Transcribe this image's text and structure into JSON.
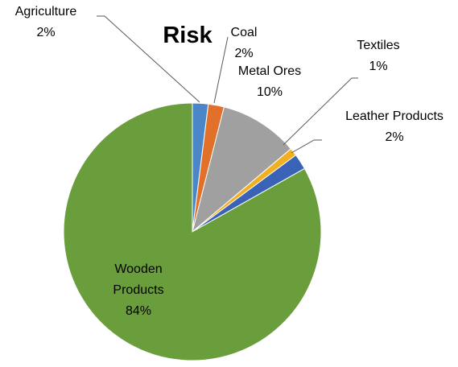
{
  "chart_data": {
    "type": "pie",
    "title": "Risk",
    "categories": [
      "Agriculture",
      "Coal",
      "Metal Ores",
      "Textiles",
      "Leather Products",
      "Wooden Products"
    ],
    "values": [
      2,
      2,
      10,
      1,
      2,
      84
    ],
    "value_labels": [
      "2%",
      "2%",
      "10%",
      "1%",
      "2%",
      "84%"
    ],
    "colors": [
      "#4a86c8",
      "#e0702a",
      "#a0a0a0",
      "#f0b020",
      "#3a62b6",
      "#6a9e3c"
    ]
  }
}
